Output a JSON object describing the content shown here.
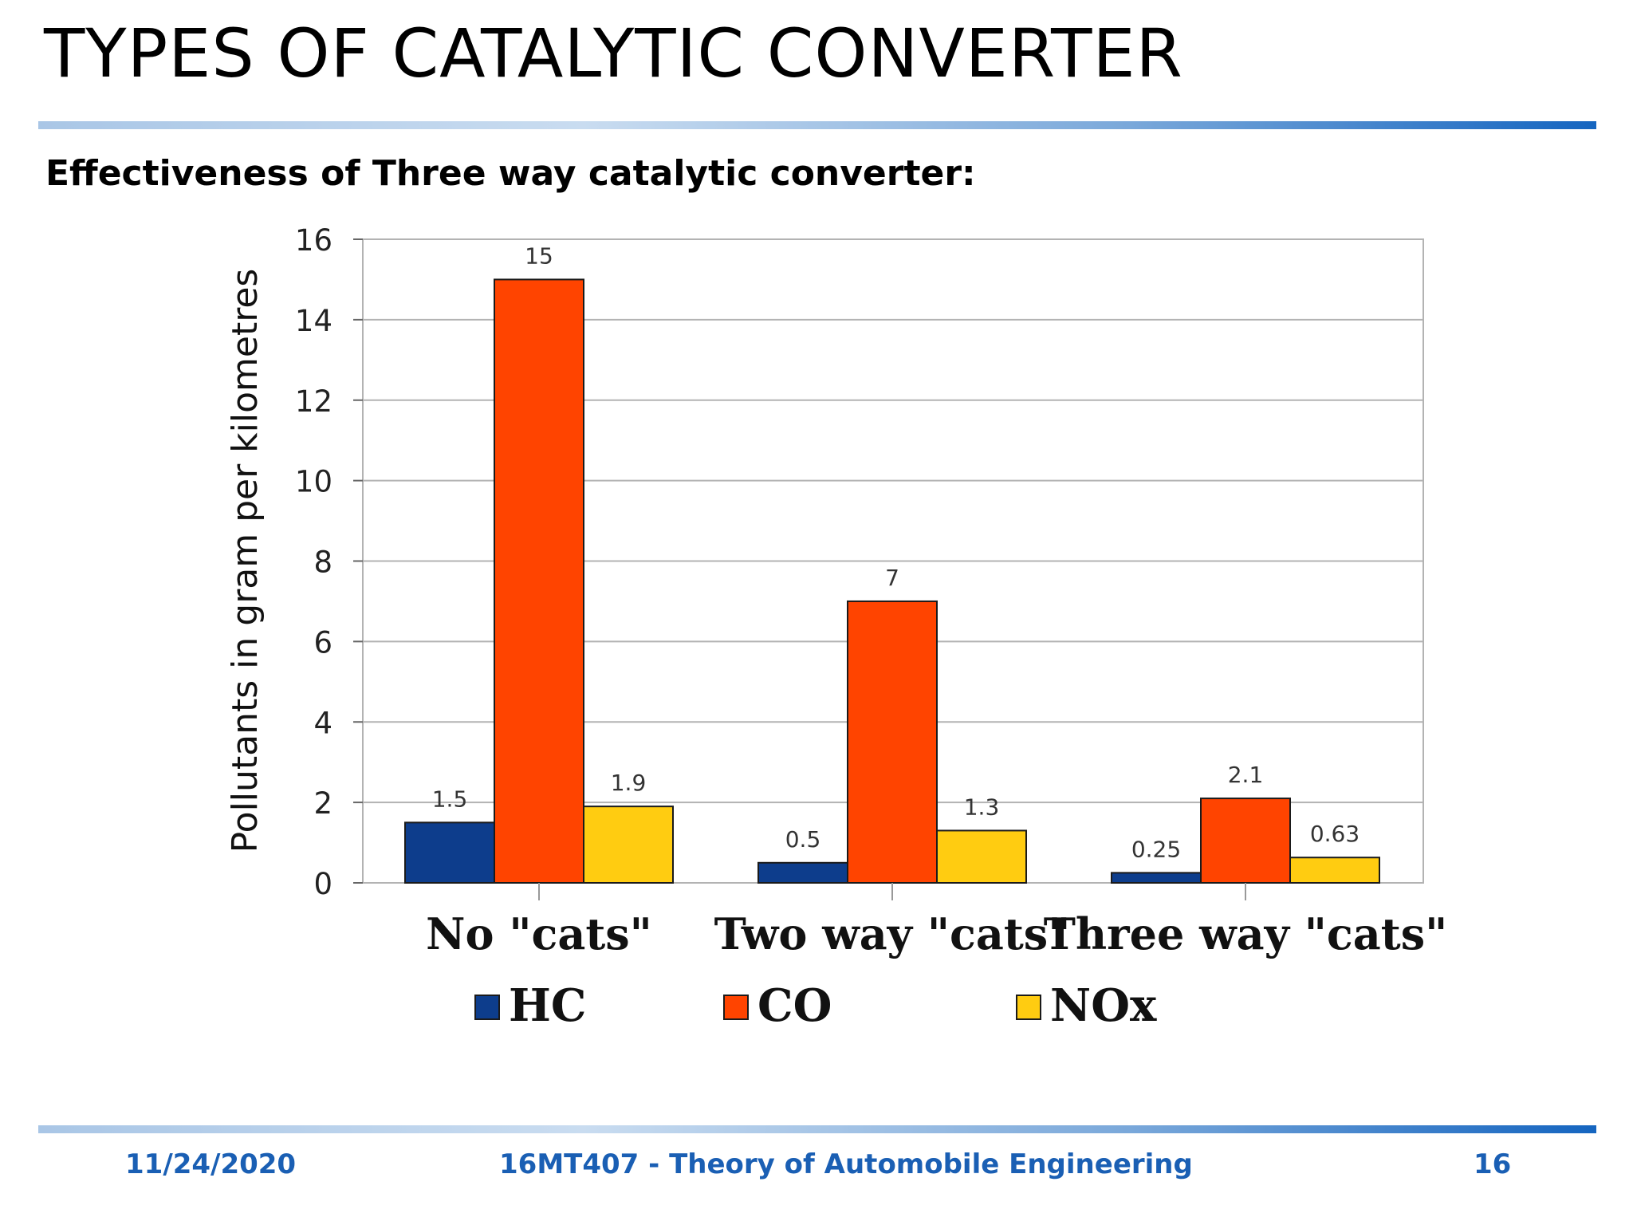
{
  "slide": {
    "title": "TYPES OF CATALYTIC CONVERTER",
    "subtitle": "Effectiveness of Three way catalytic converter:"
  },
  "footer": {
    "date": "11/24/2020",
    "course": "16MT407 - Theory of Automobile Engineering",
    "page": "16"
  },
  "chart_data": {
    "type": "bar",
    "ylabel": "Pollutants in gram per kilometres",
    "ylim": [
      0,
      16
    ],
    "yticks": [
      0,
      2,
      4,
      6,
      8,
      10,
      12,
      14,
      16
    ],
    "grid": true,
    "legend_position": "bottom",
    "categories": [
      "No \"cats\"",
      "Two way \"cats\"",
      "Three way \"cats\""
    ],
    "series": [
      {
        "name": "HC",
        "values": [
          1.5,
          0.5,
          0.25
        ],
        "labels": [
          "1.5",
          "0.5",
          "0.25"
        ],
        "color": "#0d3d8c"
      },
      {
        "name": "CO",
        "values": [
          15,
          7,
          2.1
        ],
        "labels": [
          "15",
          "7",
          "2.1"
        ],
        "color": "#ff4400"
      },
      {
        "name": "NOx",
        "values": [
          1.9,
          1.3,
          0.63
        ],
        "labels": [
          "1.9",
          "1.3",
          "0.63"
        ],
        "color": "#ffcc11"
      }
    ]
  }
}
